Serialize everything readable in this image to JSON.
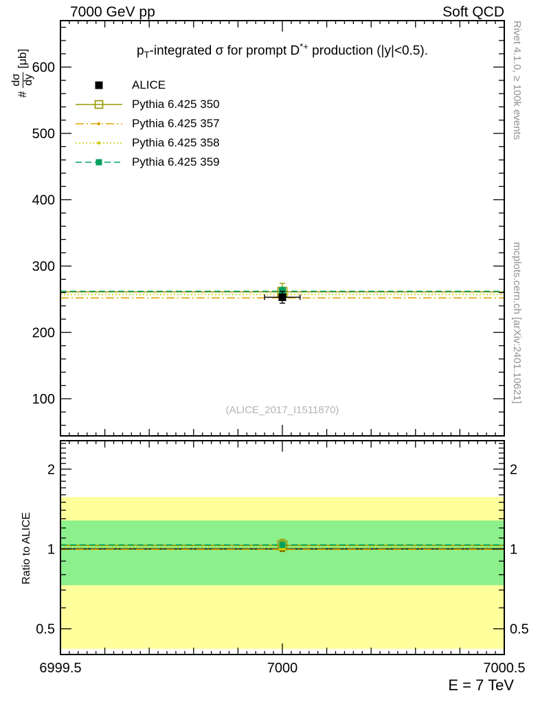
{
  "header": {
    "left": "7000 GeV pp",
    "right": "Soft QCD"
  },
  "title": {
    "p": "p",
    "sub": "T",
    "mid": "-integrated ",
    "sigma": "σ",
    "after_sigma": " for prompt D",
    "sup": "*+",
    "tail": " production (|y|<0.5)."
  },
  "legend": {
    "items": [
      {
        "label": "ALICE",
        "color": "#000000",
        "dash": "none",
        "marker": "square-filled",
        "size": 11
      },
      {
        "label": "Pythia 6.425 350",
        "color": "#999900",
        "dash": "solid",
        "marker": "square-open",
        "size": 11
      },
      {
        "label": "Pythia 6.425 357",
        "color": "#e0a500",
        "dash": "dashdot",
        "marker": "dot",
        "size": 4
      },
      {
        "label": "Pythia 6.425 358",
        "color": "#cccc00",
        "dash": "dotted",
        "marker": "dot",
        "size": 4
      },
      {
        "label": "Pythia 6.425 359",
        "color": "#00a05c",
        "dash": "dashed",
        "marker": "square-filled",
        "size": 9
      }
    ]
  },
  "watermark": "(ALICE_2017_I1511870)",
  "notes": {
    "top_right": "Rivet 4.1.0, ≥ 100k events",
    "bottom_right": "mcplots.cern.ch [arXiv:2401.10621]"
  },
  "axes": {
    "y_prefix": "#",
    "y_num": "dσ",
    "y_den": "dy",
    "y_unit": "[μb]",
    "ratio_label": "Ratio to ALICE",
    "x_title": "E = 7 TeV"
  },
  "chart_data": [
    {
      "type": "line",
      "panel": "main",
      "title": "pT-integrated σ for prompt D*+ production (|y|<0.5).",
      "xlabel": "E = 7 TeV",
      "ylabel": "dσ/dy [μb]",
      "xlim": [
        6999.5,
        7000.5
      ],
      "ylim": [
        44,
        670
      ],
      "xticks": [
        6999.5,
        7000,
        7000.5
      ],
      "xtick_labels": [
        "6999.5",
        "7000",
        "7000.5"
      ],
      "yticks": [
        100,
        200,
        300,
        400,
        500,
        600
      ],
      "ytick_labels": [
        "100",
        "200",
        "300",
        "400",
        "500",
        "600"
      ],
      "grid": false,
      "legend_position": "upper-left",
      "series": [
        {
          "name": "Pythia 6.425 350",
          "type": "hline",
          "x": 7000,
          "y": 261,
          "yerr": 13,
          "color": "#999900",
          "dash": "solid",
          "marker": "square-open",
          "msize": 13
        },
        {
          "name": "Pythia 6.425 357",
          "type": "hline",
          "x": 7000,
          "y": 252,
          "color": "#e0a500",
          "dash": "dashdot",
          "marker": "none"
        },
        {
          "name": "Pythia 6.425 358",
          "type": "hline",
          "x": 7000,
          "y": 257,
          "color": "#cccc00",
          "dash": "dotted",
          "marker": "dot"
        },
        {
          "name": "Pythia 6.425 359",
          "type": "hline",
          "x": 7000,
          "y": 262,
          "yerr": 6,
          "color": "#00a05c",
          "dash": "dashed",
          "marker": "square-filled",
          "msize": 10
        },
        {
          "name": "ALICE",
          "type": "point",
          "x": 7000,
          "y": 253,
          "yerr": 9,
          "xerr": 0.04,
          "color": "#000000",
          "marker": "square-filled",
          "msize": 11
        }
      ]
    },
    {
      "type": "ratio",
      "panel": "ratio",
      "ylabel": "Ratio to ALICE",
      "yscale": "log",
      "xlim": [
        6999.5,
        7000.5
      ],
      "ylim": [
        0.4,
        2.56
      ],
      "yticks": [
        0.5,
        1,
        2
      ],
      "ytick_labels": [
        "0.5",
        "1",
        "2"
      ],
      "bands": [
        {
          "name": "data-total-uncertainty",
          "color": "#ffff9c",
          "lo": 0.42,
          "hi": 1.57
        },
        {
          "name": "data-stat-uncertainty",
          "color": "#8cf08c",
          "lo": 0.73,
          "hi": 1.28
        }
      ],
      "series": [
        {
          "name": "ALICE reference",
          "type": "hline",
          "x": 7000,
          "y": 1.0,
          "color": "#000000",
          "dash": "solid",
          "marker": "square-filled",
          "msize": 7
        },
        {
          "name": "Pythia 6.425 350",
          "type": "hline",
          "x": 7000,
          "y": 1.032,
          "yerr": 0.055,
          "color": "#999900",
          "dash": "solid",
          "marker": "square-open",
          "msize": 13
        },
        {
          "name": "Pythia 6.425 357",
          "type": "hline",
          "x": 7000,
          "y": 0.996,
          "color": "#e0a500",
          "dash": "dashdot",
          "marker": "none"
        },
        {
          "name": "Pythia 6.425 358",
          "type": "hline",
          "x": 7000,
          "y": 1.016,
          "color": "#cccc00",
          "dash": "dotted",
          "marker": "dot"
        },
        {
          "name": "Pythia 6.425 359",
          "type": "hline",
          "x": 7000,
          "y": 1.036,
          "yerr": 0.02,
          "color": "#00a05c",
          "dash": "dashed",
          "marker": "square-filled",
          "msize": 9
        }
      ]
    }
  ]
}
